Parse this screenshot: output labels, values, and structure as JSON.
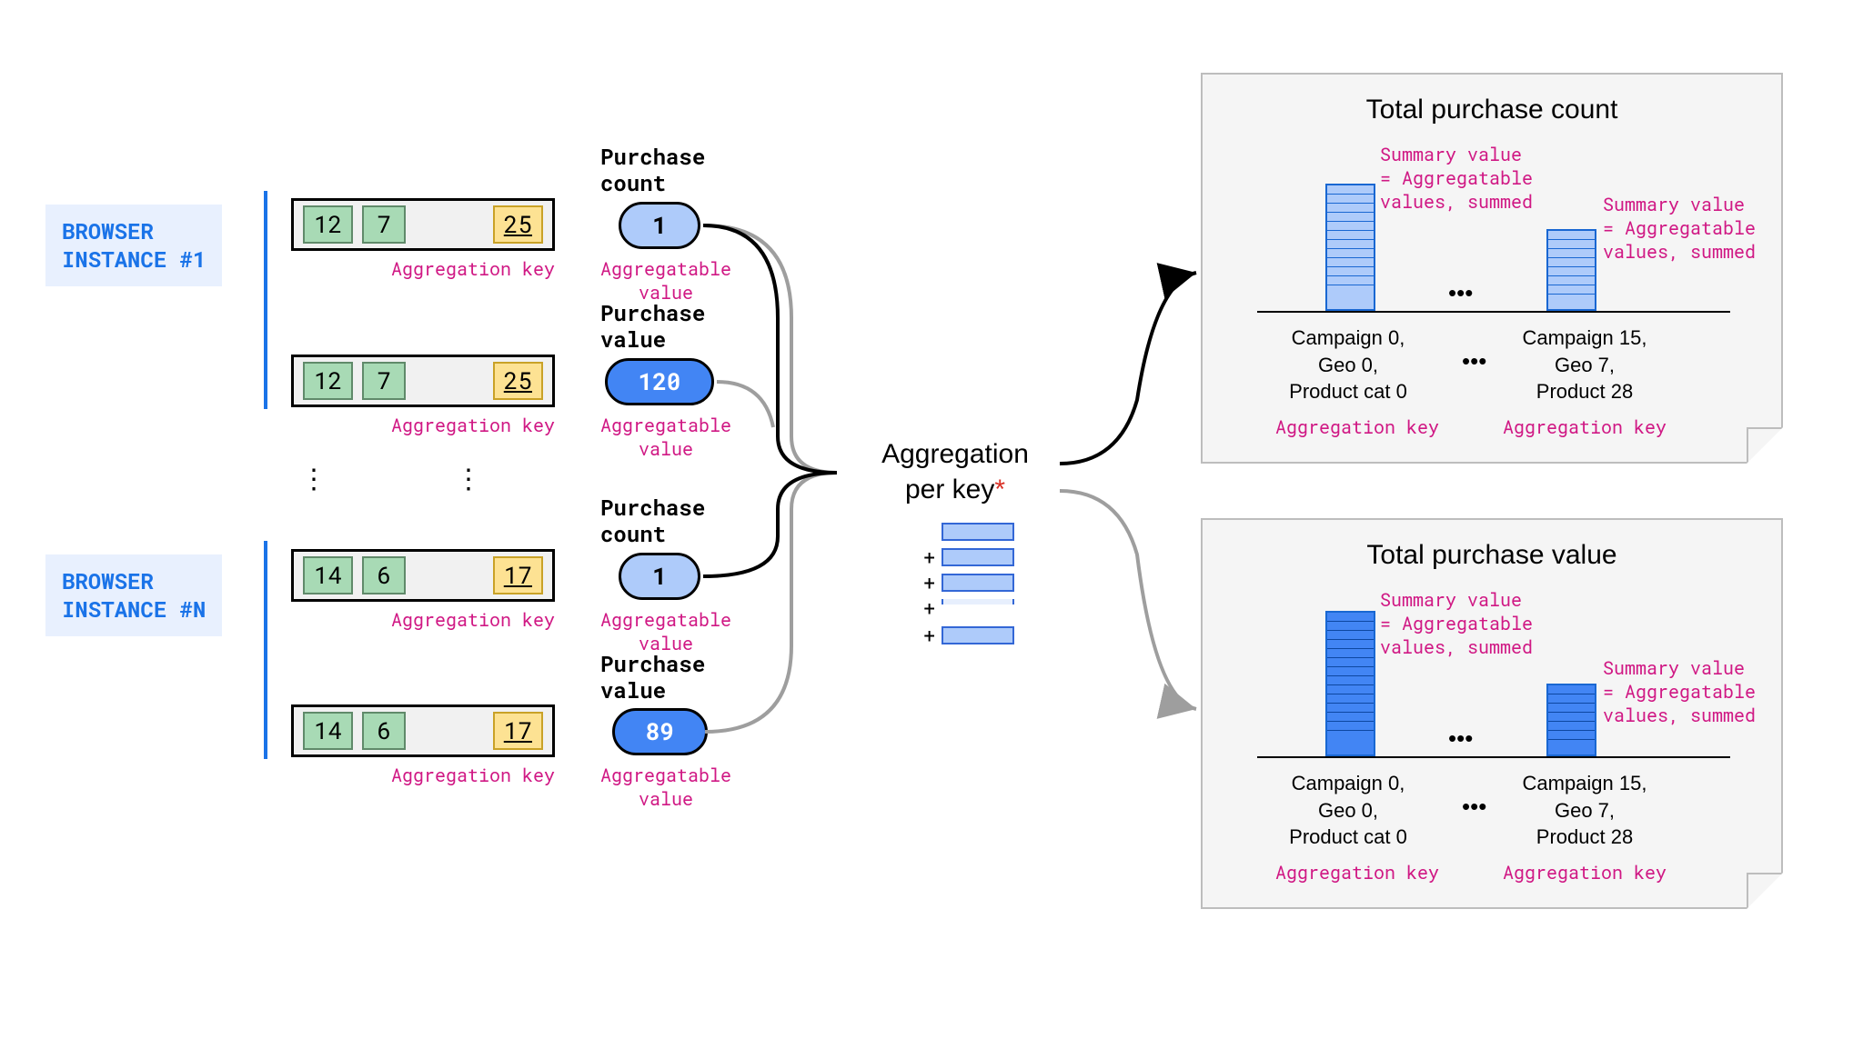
{
  "browsers": [
    {
      "label": "BROWSER\nINSTANCE #1"
    },
    {
      "label": "BROWSER\nINSTANCE #N"
    }
  ],
  "aggregation_key_label": "Aggregation key",
  "aggregatable_value_label": "Aggregatable\nvalue",
  "rows": [
    {
      "chips": [
        "12",
        "7",
        "25"
      ],
      "title": "Purchase\ncount",
      "value": "1",
      "pill_bg": "#aecbfa"
    },
    {
      "chips": [
        "12",
        "7",
        "25"
      ],
      "title": "Purchase\nvalue",
      "value": "120",
      "pill_bg": "#4285f4"
    },
    {
      "chips": [
        "14",
        "6",
        "17"
      ],
      "title": "Purchase\ncount",
      "value": "1",
      "pill_bg": "#aecbfa"
    },
    {
      "chips": [
        "14",
        "6",
        "17"
      ],
      "title": "Purchase\nvalue",
      "value": "89",
      "pill_bg": "#4285f4"
    }
  ],
  "center": {
    "text_line1": "Aggregation",
    "text_line2": "per key",
    "asterisk": "*"
  },
  "panels": [
    {
      "title": "Total purchase count",
      "summary_label": "Summary value\n= Aggregatable\nvalues, summed",
      "bar_color": "#aecbfa",
      "bar1_height": 140,
      "bar2_height": 90,
      "cat1": "Campaign 0,\nGeo 0,\nProduct cat 0",
      "cat2": "Campaign 15,\nGeo 7,\nProduct 28",
      "agg_key_label": "Aggregation key"
    },
    {
      "title": "Total purchase value",
      "summary_label": "Summary value\n= Aggregatable\nvalues, summed",
      "bar_color": "#4285f4",
      "bar1_height": 160,
      "bar2_height": 80,
      "cat1": "Campaign 0,\nGeo 0,\nProduct cat 0",
      "cat2": "Campaign 15,\nGeo 7,\nProduct 28",
      "agg_key_label": "Aggregation key"
    }
  ],
  "colors": {
    "blue_accent": "#1a73e8",
    "pink": "#d01884",
    "light_blue": "#aecbfa",
    "mid_blue": "#4285f4",
    "green_chip": "#a8dab5",
    "yellow_chip": "#fde293"
  }
}
